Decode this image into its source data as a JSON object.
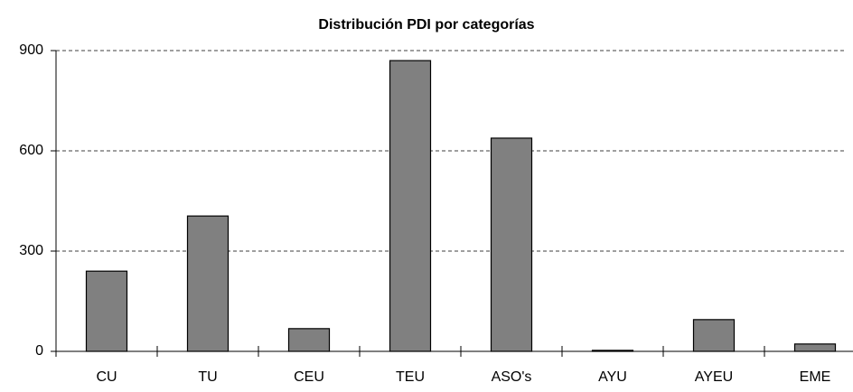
{
  "chart_data": {
    "type": "bar",
    "title": "Distribución PDI por categorías",
    "categories": [
      "CU",
      "TU",
      "CEU",
      "TEU",
      "ASO's",
      "AYU",
      "AYEU",
      "EME"
    ],
    "values": [
      240,
      405,
      68,
      870,
      638,
      3,
      95,
      22
    ],
    "color": "#808080",
    "ylim": [
      0,
      900
    ],
    "yticks": [
      0,
      300,
      600,
      900
    ],
    "grid": true
  }
}
